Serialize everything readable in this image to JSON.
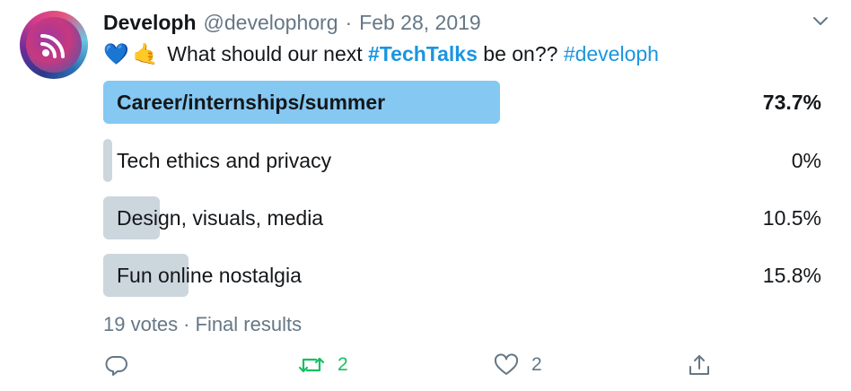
{
  "tweet": {
    "author_name": "Developh",
    "handle": "@develophorg",
    "separator": "·",
    "date": "Feb 28, 2019",
    "text": {
      "emoji_1": "💙",
      "emoji_2": "🤙",
      "before": "What should our next ",
      "hashtag_1": "#TechTalks",
      "middle": " be on?? ",
      "hashtag_2": "#developh"
    }
  },
  "poll": {
    "options": [
      {
        "label": "Career/internships/summer",
        "percent": "73.7%",
        "value": 73.7,
        "winner": true
      },
      {
        "label": "Tech ethics and privacy",
        "percent": "0%",
        "value": 0,
        "winner": false
      },
      {
        "label": "Design, visuals, media",
        "percent": "10.5%",
        "value": 10.5,
        "winner": false
      },
      {
        "label": "Fun online nostalgia",
        "percent": "15.8%",
        "value": 15.8,
        "winner": false
      }
    ],
    "votes": "19 votes",
    "dot": "·",
    "status": "Final results"
  },
  "actions": {
    "reply_icon": "reply-icon",
    "retweet_icon": "retweet-icon",
    "retweet_count": "2",
    "like_icon": "heart-icon",
    "like_count": "2",
    "share_icon": "share-icon"
  },
  "colors": {
    "winner_bar": "#85c8f2",
    "bar": "#ccd6dd",
    "hashtag": "#1b95e0",
    "retweet": "#17bf63",
    "muted": "#657786"
  }
}
